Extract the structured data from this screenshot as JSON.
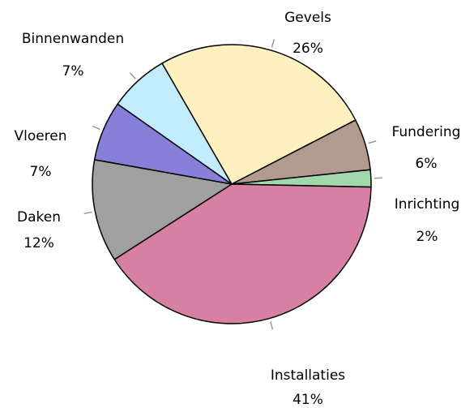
{
  "chart_data": {
    "type": "pie",
    "categories": [
      "Gevels",
      "Fundering",
      "Inrichting",
      "Installaties",
      "Daken",
      "Vloeren",
      "Binnenwanden"
    ],
    "values": [
      26,
      6,
      2,
      41,
      12,
      7,
      7
    ],
    "value_labels": [
      "26%",
      "6%",
      "2%",
      "41%",
      "12%",
      "7%",
      "7%"
    ],
    "colors": [
      "#fff0c0",
      "#b29a8e",
      "#a2d8ac",
      "#d880a4",
      "#a0a0a0",
      "#8880d8",
      "#c2ecfc"
    ]
  }
}
